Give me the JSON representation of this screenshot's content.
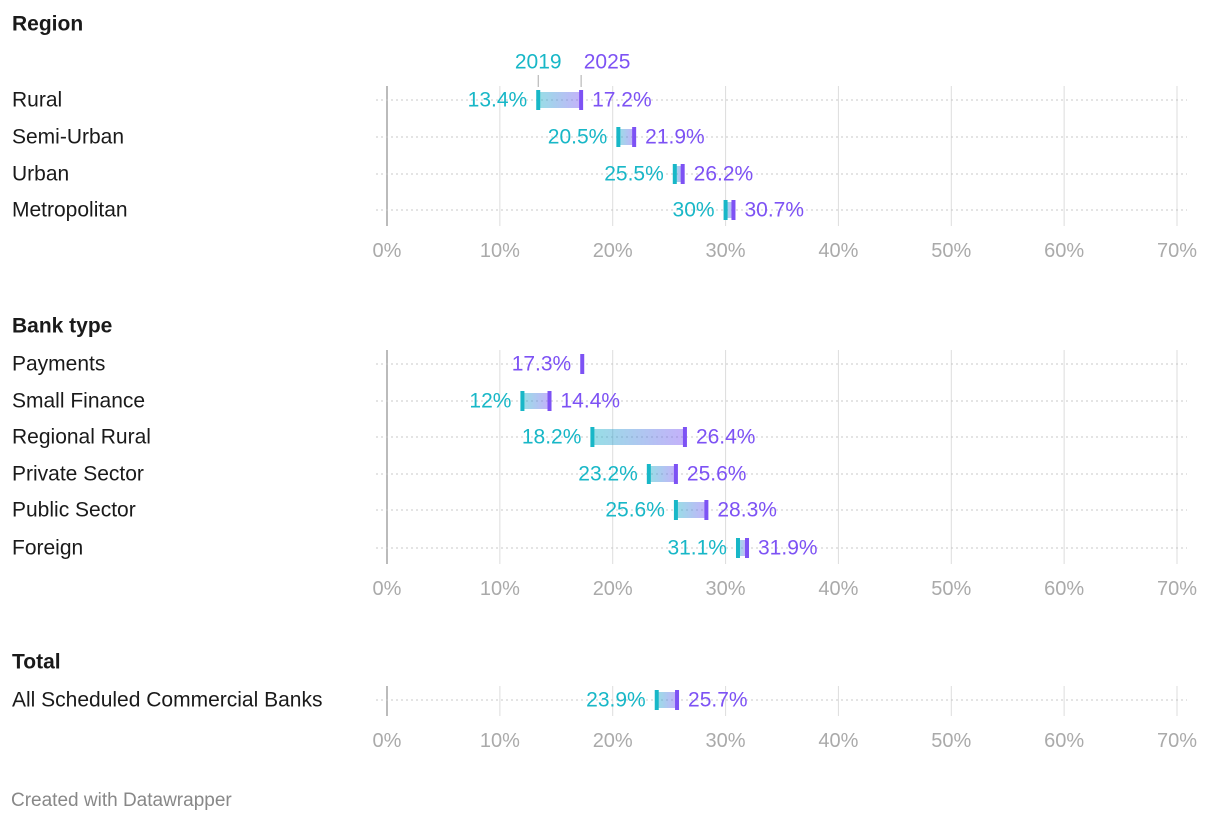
{
  "colors": {
    "start": "#18b7c7",
    "end": "#7d52f4",
    "label": "#1a1a1a",
    "axis": "#aaaaaa",
    "grid": "#dddddd"
  },
  "legend": {
    "start_label": "2019",
    "end_label": "2025"
  },
  "footer": "Created with Datawrapper",
  "chart_data": {
    "type": "range-plot",
    "axis": {
      "ticks": [
        0,
        10,
        20,
        30,
        40,
        50,
        60,
        70
      ],
      "unit": "%",
      "range": [
        0,
        70
      ]
    },
    "groups": [
      {
        "title": "Region",
        "rows": [
          {
            "label": "Rural",
            "start": 13.4,
            "end": 17.2,
            "start_label": "13.4%",
            "end_label": "17.2%"
          },
          {
            "label": "Semi-Urban",
            "start": 20.5,
            "end": 21.9,
            "start_label": "20.5%",
            "end_label": "21.9%"
          },
          {
            "label": "Urban",
            "start": 25.5,
            "end": 26.2,
            "start_label": "25.5%",
            "end_label": "26.2%"
          },
          {
            "label": "Metropolitan",
            "start": 30,
            "end": 30.7,
            "start_label": "30%",
            "end_label": "30.7%"
          }
        ]
      },
      {
        "title": "Bank type",
        "rows": [
          {
            "label": "Payments",
            "start": 17.3,
            "end": 17.3,
            "start_label": "",
            "end_label": "17.3%"
          },
          {
            "label": "Small Finance",
            "start": 12,
            "end": 14.4,
            "start_label": "12%",
            "end_label": "14.4%"
          },
          {
            "label": "Regional Rural",
            "start": 18.2,
            "end": 26.4,
            "start_label": "18.2%",
            "end_label": "26.4%"
          },
          {
            "label": "Private Sector",
            "start": 23.2,
            "end": 25.6,
            "start_label": "23.2%",
            "end_label": "25.6%"
          },
          {
            "label": "Public Sector",
            "start": 25.6,
            "end": 28.3,
            "start_label": "25.6%",
            "end_label": "28.3%"
          },
          {
            "label": "Foreign",
            "start": 31.1,
            "end": 31.9,
            "start_label": "31.1%",
            "end_label": "31.9%"
          }
        ]
      },
      {
        "title": "Total",
        "rows": [
          {
            "label": "All Scheduled Commercial Banks",
            "start": 23.9,
            "end": 25.7,
            "start_label": "23.9%",
            "end_label": "25.7%"
          }
        ]
      }
    ]
  }
}
